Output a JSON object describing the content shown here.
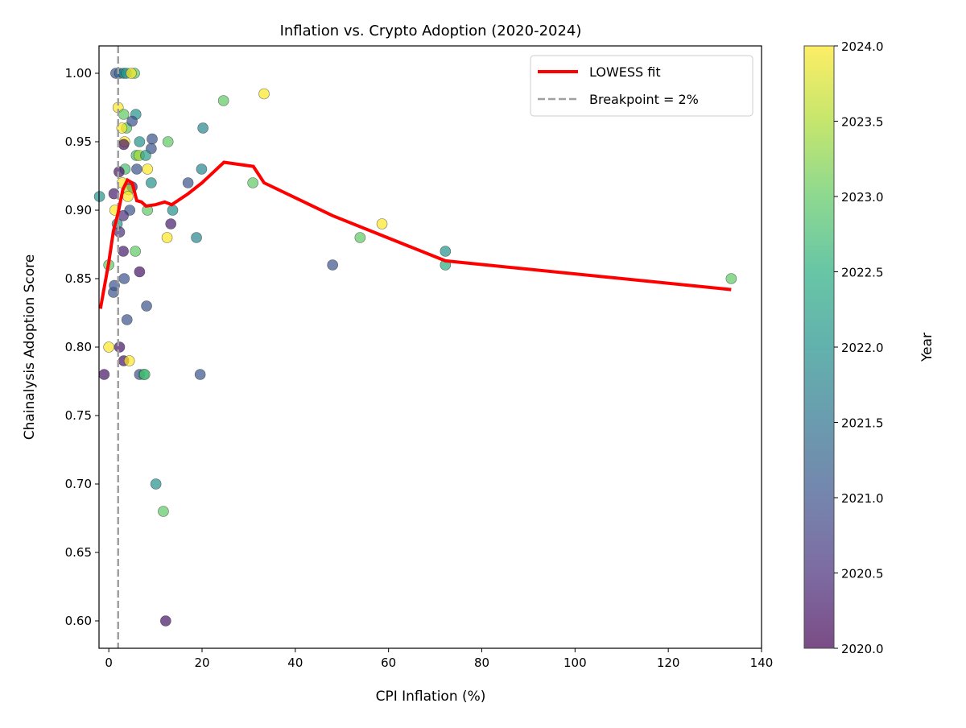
{
  "chart_data": {
    "type": "scatter",
    "title": "Inflation vs. Crypto Adoption (2020-2024)",
    "xlabel": "CPI Inflation (%)",
    "ylabel": "Chainalysis Adoption Score",
    "xlim": [
      -2.1,
      140
    ],
    "ylim": [
      0.58,
      1.02
    ],
    "xticks": [
      0,
      20,
      40,
      60,
      80,
      100,
      120,
      140
    ],
    "yticks": [
      "0.60",
      "0.65",
      "0.70",
      "0.75",
      "0.80",
      "0.85",
      "0.90",
      "0.95",
      "1.00"
    ],
    "grid": false,
    "legend_placement": "top-right",
    "legend": [
      "LOWESS fit",
      "Breakpoint = 2%"
    ],
    "breakpoint": 2,
    "colorbar": {
      "label": "Year",
      "range": [
        2020,
        2024
      ],
      "colormap": "viridis",
      "ticks": [
        "2020.0",
        "2020.5",
        "2021.0",
        "2021.5",
        "2022.0",
        "2022.5",
        "2023.0",
        "2023.5",
        "2024.0"
      ]
    },
    "line_color": "#ff0000",
    "breakpoint_color": "#a0a0a0",
    "points": [
      [
        1.5,
        1.0,
        2021.0
      ],
      [
        2.3,
        1.0,
        2021.3
      ],
      [
        3.2,
        1.0,
        2021.8
      ],
      [
        3.8,
        1.0,
        2022.2
      ],
      [
        5.5,
        1.0,
        2023.0
      ],
      [
        4.8,
        1.0,
        2024.0
      ],
      [
        2.0,
        0.975,
        2024.0
      ],
      [
        3.2,
        0.97,
        2023.0
      ],
      [
        5.8,
        0.97,
        2022.0
      ],
      [
        3.8,
        0.96,
        2023.0
      ],
      [
        5.0,
        0.965,
        2021.0
      ],
      [
        2.8,
        0.96,
        2024.0
      ],
      [
        3.4,
        0.95,
        2024.0
      ],
      [
        3.2,
        0.948,
        2020.2
      ],
      [
        6.6,
        0.95,
        2022.0
      ],
      [
        9.3,
        0.952,
        2021.0
      ],
      [
        9.1,
        0.945,
        2021.0
      ],
      [
        12.7,
        0.95,
        2023.0
      ],
      [
        5.9,
        0.94,
        2022.8
      ],
      [
        6.5,
        0.94,
        2023.5
      ],
      [
        7.9,
        0.94,
        2022.2
      ],
      [
        3.5,
        0.93,
        2022.8
      ],
      [
        2.2,
        0.928,
        2020.2
      ],
      [
        6.0,
        0.93,
        2021.0
      ],
      [
        8.3,
        0.93,
        2024.0
      ],
      [
        19.9,
        0.93,
        2021.8
      ],
      [
        20.2,
        0.96,
        2021.8
      ],
      [
        24.6,
        0.98,
        2023.0
      ],
      [
        33.3,
        0.985,
        2024.0
      ],
      [
        2.9,
        0.92,
        2024.0
      ],
      [
        9.1,
        0.92,
        2022.0
      ],
      [
        17.0,
        0.92,
        2021.0
      ],
      [
        30.9,
        0.92,
        2023.0
      ],
      [
        5.0,
        0.917,
        2020.3
      ],
      [
        4.2,
        0.915,
        2023.5
      ],
      [
        1.1,
        0.912,
        2020.3
      ],
      [
        -2.0,
        0.91,
        2022.0
      ],
      [
        4.1,
        0.91,
        2024.0
      ],
      [
        1.3,
        0.9,
        2024.0
      ],
      [
        4.5,
        0.9,
        2021.0
      ],
      [
        8.3,
        0.9,
        2023.0
      ],
      [
        13.7,
        0.9,
        2022.0
      ],
      [
        3.1,
        0.896,
        2020.5
      ],
      [
        1.8,
        0.89,
        2022.0
      ],
      [
        2.3,
        0.884,
        2020.5
      ],
      [
        13.3,
        0.89,
        2020.3
      ],
      [
        12.5,
        0.88,
        2024.0
      ],
      [
        18.8,
        0.88,
        2021.8
      ],
      [
        3.1,
        0.87,
        2020.3
      ],
      [
        5.7,
        0.87,
        2023.0
      ],
      [
        0.0,
        0.86,
        2023.0
      ],
      [
        6.6,
        0.855,
        2020.2
      ],
      [
        48.0,
        0.86,
        2021.0
      ],
      [
        53.9,
        0.88,
        2023.0
      ],
      [
        58.6,
        0.89,
        2024.0
      ],
      [
        72.2,
        0.87,
        2022.0
      ],
      [
        72.2,
        0.86,
        2022.5
      ],
      [
        133.5,
        0.85,
        2023.0
      ],
      [
        1.0,
        0.84,
        2021.0
      ],
      [
        1.2,
        0.845,
        2021.0
      ],
      [
        3.3,
        0.85,
        2021.0
      ],
      [
        8.1,
        0.83,
        2021.0
      ],
      [
        3.9,
        0.82,
        2021.0
      ],
      [
        0.0,
        0.8,
        2024.0
      ],
      [
        2.3,
        0.8,
        2020.2
      ],
      [
        3.2,
        0.79,
        2020.2
      ],
      [
        4.4,
        0.79,
        2024.0
      ],
      [
        -1.0,
        0.78,
        2020.2
      ],
      [
        6.6,
        0.78,
        2021.0
      ],
      [
        7.5,
        0.78,
        2022.5
      ],
      [
        7.7,
        0.78,
        2022.8
      ],
      [
        19.6,
        0.78,
        2021.0
      ],
      [
        10.1,
        0.7,
        2022.0
      ],
      [
        11.7,
        0.68,
        2023.0
      ],
      [
        12.2,
        0.6,
        2020.2
      ]
    ],
    "lowess": [
      [
        -1.8,
        0.828
      ],
      [
        0,
        0.862
      ],
      [
        1,
        0.885
      ],
      [
        2,
        0.898
      ],
      [
        3,
        0.915
      ],
      [
        4,
        0.922
      ],
      [
        5,
        0.92
      ],
      [
        6,
        0.907
      ],
      [
        7,
        0.906
      ],
      [
        8,
        0.903
      ],
      [
        10,
        0.904
      ],
      [
        12,
        0.906
      ],
      [
        13.5,
        0.904
      ],
      [
        17,
        0.912
      ],
      [
        20,
        0.92
      ],
      [
        24.7,
        0.935
      ],
      [
        31,
        0.932
      ],
      [
        33.3,
        0.92
      ],
      [
        48,
        0.896
      ],
      [
        72.2,
        0.863
      ],
      [
        133.5,
        0.842
      ]
    ]
  }
}
